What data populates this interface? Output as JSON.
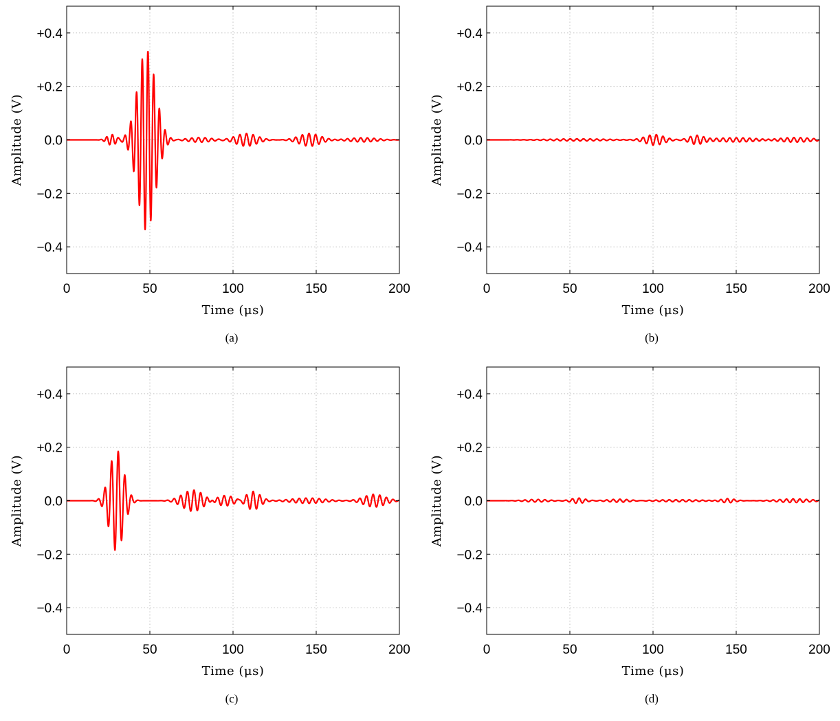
{
  "chart_data": [
    {
      "type": "line",
      "panel": "(a)",
      "xlabel": "Time (μs)",
      "ylabel": "Amplitude (V)",
      "xlim": [
        0,
        200
      ],
      "ylim": [
        -0.5,
        0.5
      ],
      "xticks": [
        "0",
        "50",
        "100",
        "150",
        "200"
      ],
      "yticks": [
        "+0.4",
        "+0.2",
        "0.0",
        "−0.2",
        "−0.4"
      ],
      "grid": true,
      "color": "#ff0000",
      "packets": [
        {
          "center": 48,
          "width": 7.5,
          "amp": 0.34,
          "freq": 0.29
        },
        {
          "center": 27,
          "width": 4,
          "amp": 0.02,
          "freq": 0.29
        },
        {
          "center": 108,
          "width": 9,
          "amp": 0.024,
          "freq": 0.25
        },
        {
          "center": 146,
          "width": 9,
          "amp": 0.024,
          "freq": 0.25
        },
        {
          "center": 80,
          "width": 10,
          "amp": 0.009,
          "freq": 0.25
        },
        {
          "center": 178,
          "width": 12,
          "amp": 0.008,
          "freq": 0.25
        }
      ],
      "onset": 18,
      "peak_max": 0.33,
      "peak_min": -0.36
    },
    {
      "type": "line",
      "panel": "(b)",
      "xlabel": "Time (μs)",
      "ylabel": "Amplitude (V)",
      "xlim": [
        0,
        200
      ],
      "ylim": [
        -0.5,
        0.5
      ],
      "xticks": [
        "0",
        "50",
        "100",
        "150",
        "200"
      ],
      "yticks": [
        "+0.4",
        "+0.2",
        "0.0",
        "−0.2",
        "−0.4"
      ],
      "grid": true,
      "color": "#ff0000",
      "packets": [
        {
          "center": 101,
          "width": 8,
          "amp": 0.02,
          "freq": 0.25
        },
        {
          "center": 126,
          "width": 6,
          "amp": 0.016,
          "freq": 0.25
        },
        {
          "center": 150,
          "width": 20,
          "amp": 0.008,
          "freq": 0.25
        },
        {
          "center": 185,
          "width": 15,
          "amp": 0.009,
          "freq": 0.25
        },
        {
          "center": 55,
          "width": 25,
          "amp": 0.004,
          "freq": 0.25
        }
      ],
      "onset": 15,
      "peak_max": 0.02,
      "peak_min": -0.02
    },
    {
      "type": "line",
      "panel": "(c)",
      "xlabel": "Time (μs)",
      "ylabel": "Amplitude (V)",
      "xlim": [
        0,
        200
      ],
      "ylim": [
        -0.5,
        0.5
      ],
      "xticks": [
        "0",
        "50",
        "100",
        "150",
        "200"
      ],
      "yticks": [
        "+0.4",
        "+0.2",
        "0.0",
        "−0.2",
        "−0.4"
      ],
      "grid": true,
      "color": "#ff0000",
      "packets": [
        {
          "center": 30,
          "width": 6,
          "amp": 0.19,
          "freq": 0.25
        },
        {
          "center": 76,
          "width": 9,
          "amp": 0.04,
          "freq": 0.25
        },
        {
          "center": 112,
          "width": 6,
          "amp": 0.035,
          "freq": 0.25
        },
        {
          "center": 95,
          "width": 8,
          "amp": 0.02,
          "freq": 0.25
        },
        {
          "center": 185,
          "width": 9,
          "amp": 0.024,
          "freq": 0.25
        },
        {
          "center": 145,
          "width": 14,
          "amp": 0.01,
          "freq": 0.25
        }
      ],
      "onset": 14,
      "peak_max": 0.19,
      "peak_min": -0.19
    },
    {
      "type": "line",
      "panel": "(d)",
      "xlabel": "Time (μs)",
      "ylabel": "Amplitude (V)",
      "xlim": [
        0,
        200
      ],
      "ylim": [
        -0.5,
        0.5
      ],
      "xticks": [
        "0",
        "50",
        "100",
        "150",
        "200"
      ],
      "yticks": [
        "+0.4",
        "+0.2",
        "0.0",
        "−0.2",
        "−0.4"
      ],
      "grid": true,
      "color": "#ff0000",
      "packets": [
        {
          "center": 30,
          "width": 10,
          "amp": 0.005,
          "freq": 0.25
        },
        {
          "center": 55,
          "width": 6,
          "amp": 0.01,
          "freq": 0.25
        },
        {
          "center": 80,
          "width": 10,
          "amp": 0.006,
          "freq": 0.25
        },
        {
          "center": 145,
          "width": 6,
          "amp": 0.008,
          "freq": 0.25
        },
        {
          "center": 185,
          "width": 14,
          "amp": 0.007,
          "freq": 0.25
        },
        {
          "center": 115,
          "width": 20,
          "amp": 0.004,
          "freq": 0.25
        }
      ],
      "onset": 12,
      "peak_max": 0.01,
      "peak_min": -0.01
    }
  ]
}
